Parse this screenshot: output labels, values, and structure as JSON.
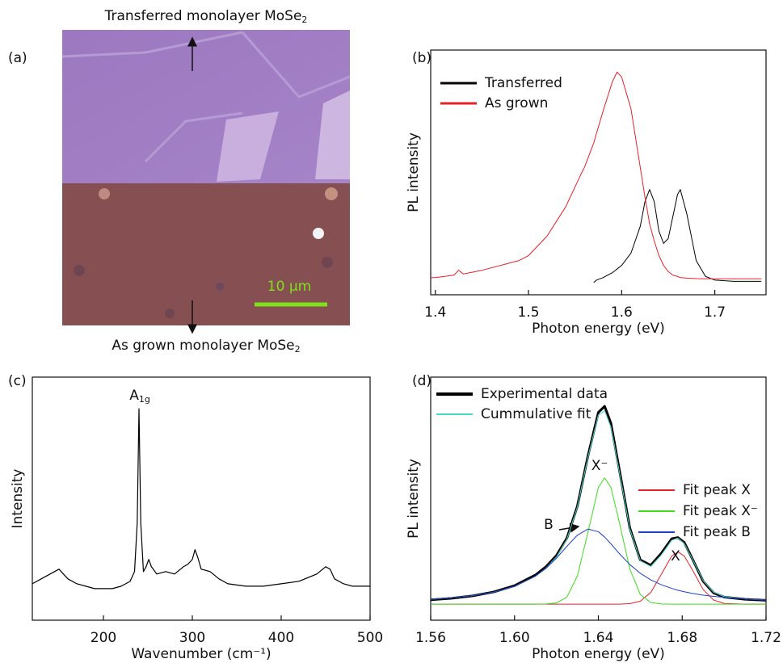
{
  "figure": {
    "panel_label": "(a)",
    "top_caption": {
      "text": "Transferred monolayer MoSe",
      "subscript": "2"
    },
    "bottom_caption": {
      "text": "As grown monolayer MoSe",
      "subscript": "2"
    },
    "scale_bar": "10 μm"
  },
  "chart_data": [
    {
      "type": "line",
      "panel_label": "(b)",
      "x_label": "Photon energy (eV)",
      "y_label": "PL intensity",
      "xlim": [
        1.395,
        1.755
      ],
      "ylim": [
        0,
        100
      ],
      "xticks": [
        1.4,
        1.5,
        1.6,
        1.7
      ],
      "x": [
        1.395,
        1.4,
        1.42,
        1.425,
        1.43,
        1.45,
        1.48,
        1.49,
        1.5,
        1.52,
        1.54,
        1.556,
        1.56,
        1.57,
        1.573,
        1.58,
        1.59,
        1.595,
        1.6,
        1.61,
        1.62,
        1.625,
        1.63,
        1.635,
        1.64,
        1.645,
        1.65,
        1.655,
        1.66,
        1.663,
        1.67,
        1.68,
        1.69,
        1.7,
        1.72,
        1.75
      ],
      "series": [
        {
          "name": "Transferred",
          "color": "#000000",
          "values": [
            null,
            null,
            null,
            null,
            null,
            null,
            null,
            null,
            null,
            null,
            null,
            null,
            null,
            5,
            6,
            7,
            9,
            10.5,
            12,
            17,
            28,
            38,
            43,
            38,
            26,
            21,
            23,
            32,
            41,
            43,
            33,
            14,
            7.5,
            6,
            5.5,
            5.5
          ]
        },
        {
          "name": "As grown",
          "color": "#e8202a",
          "values": [
            7,
            7,
            8,
            10,
            8.5,
            10,
            13,
            14,
            16,
            24,
            36,
            49,
            52,
            62,
            66,
            75,
            87,
            91,
            89,
            76,
            52,
            40,
            29,
            22,
            16,
            12,
            9.5,
            8,
            7.5,
            7,
            6.8,
            6.6,
            6.5,
            6.5,
            6.5,
            6.5
          ]
        }
      ]
    },
    {
      "type": "line",
      "panel_label": "(c)",
      "x_label": "Wavenumber (cm⁻¹)",
      "y_label": "Intensity",
      "xlim": [
        120,
        500
      ],
      "ylim": [
        0,
        100
      ],
      "xticks": [
        200,
        300,
        400,
        500
      ],
      "annotations": [
        {
          "text": "A",
          "subscript": "1g"
        }
      ],
      "x": [
        120,
        130,
        140,
        150,
        160,
        170,
        180,
        190,
        200,
        210,
        220,
        230,
        235,
        238,
        240,
        242,
        245,
        248,
        251,
        254,
        260,
        270,
        280,
        290,
        295,
        300,
        303,
        306,
        310,
        320,
        330,
        340,
        360,
        380,
        400,
        420,
        440,
        450,
        455,
        460,
        470,
        480,
        490,
        500
      ],
      "series": [
        {
          "color": "#000000",
          "values": [
            15,
            17,
            19,
            21,
            17,
            15,
            14,
            13,
            13,
            13,
            14,
            16,
            20,
            40,
            87,
            40,
            20,
            22,
            25,
            22,
            19,
            20,
            19,
            22,
            23,
            25,
            29,
            26,
            21,
            20,
            17,
            15,
            14,
            14,
            15,
            16,
            19,
            22,
            21,
            17,
            15,
            14,
            14,
            14
          ]
        }
      ]
    },
    {
      "type": "line",
      "panel_label": "(d)",
      "x_label": "Photon energy (eV)",
      "y_label": "PL intensity",
      "xlim": [
        1.56,
        1.72
      ],
      "ylim": [
        0,
        100
      ],
      "xticks": [
        1.56,
        {
          "value": 1.6,
          "label": "1.60"
        },
        1.64,
        1.68,
        1.72
      ],
      "annotations": [
        {
          "text": "B"
        },
        {
          "text": "X⁻"
        },
        {
          "text": "X"
        }
      ],
      "x": [
        1.56,
        1.57,
        1.58,
        1.59,
        1.6,
        1.61,
        1.615,
        1.62,
        1.625,
        1.63,
        1.635,
        1.64,
        1.643,
        1.646,
        1.65,
        1.655,
        1.66,
        1.665,
        1.67,
        1.675,
        1.678,
        1.681,
        1.685,
        1.69,
        1.695,
        1.7,
        1.71,
        1.72
      ],
      "series": [
        {
          "name": "Experimental data",
          "color": "#000000",
          "values": [
            8.4,
            9.0,
            10.0,
            11.6,
            14.2,
            18.6,
            22.0,
            26.6,
            33.8,
            47.0,
            67.5,
            85.5,
            88.0,
            81.0,
            62.0,
            38.0,
            24.8,
            22.6,
            27.5,
            33.5,
            34.0,
            32.0,
            25.0,
            16.0,
            11.2,
            9.5,
            8.6,
            8.2
          ]
        },
        {
          "name": "Cummulative fit",
          "color": "#48d8c8",
          "values": [
            8.6,
            9.2,
            10.1,
            11.5,
            13.9,
            18.1,
            21.4,
            26.0,
            33.3,
            46.6,
            66.9,
            84.4,
            86.2,
            79.4,
            61.1,
            37.6,
            24.5,
            22.1,
            26.8,
            32.9,
            33.8,
            31.5,
            24.9,
            16.3,
            11.5,
            9.7,
            8.7,
            8.3
          ]
        },
        {
          "name": "Fit peak X",
          "color": "#e8202a",
          "values": [
            6.6,
            6.6,
            6.6,
            6.6,
            6.6,
            6.6,
            6.6,
            6.6,
            6.6,
            6.6,
            6.6,
            6.6,
            6.6,
            6.6,
            6.6,
            6.8,
            7.8,
            11.4,
            18.8,
            26.4,
            28.1,
            26.4,
            20.5,
            12.6,
            8.3,
            6.9,
            6.6,
            6.6
          ]
        },
        {
          "name": "Fit peak X⁻",
          "color": "#3ddc1f",
          "values": [
            6.6,
            6.6,
            6.6,
            6.6,
            6.6,
            6.6,
            6.7,
            7.1,
            9.5,
            18.2,
            36.0,
            54.6,
            58.6,
            54.6,
            40.3,
            21.1,
            10.6,
            7.3,
            6.7,
            6.6,
            6.6,
            6.6,
            6.6,
            6.6,
            6.6,
            6.6,
            6.6,
            6.6
          ]
        },
        {
          "name": "Fit peak B",
          "color": "#1f3fd0",
          "values": [
            8.6,
            9.2,
            10.1,
            11.5,
            13.9,
            18.1,
            21.3,
            25.5,
            30.4,
            35.0,
            37.5,
            36.4,
            34.2,
            31.4,
            27.4,
            22.9,
            19.3,
            16.6,
            14.6,
            13.1,
            12.3,
            11.7,
            11.0,
            10.3,
            9.8,
            9.4,
            8.7,
            8.3
          ]
        }
      ]
    }
  ]
}
